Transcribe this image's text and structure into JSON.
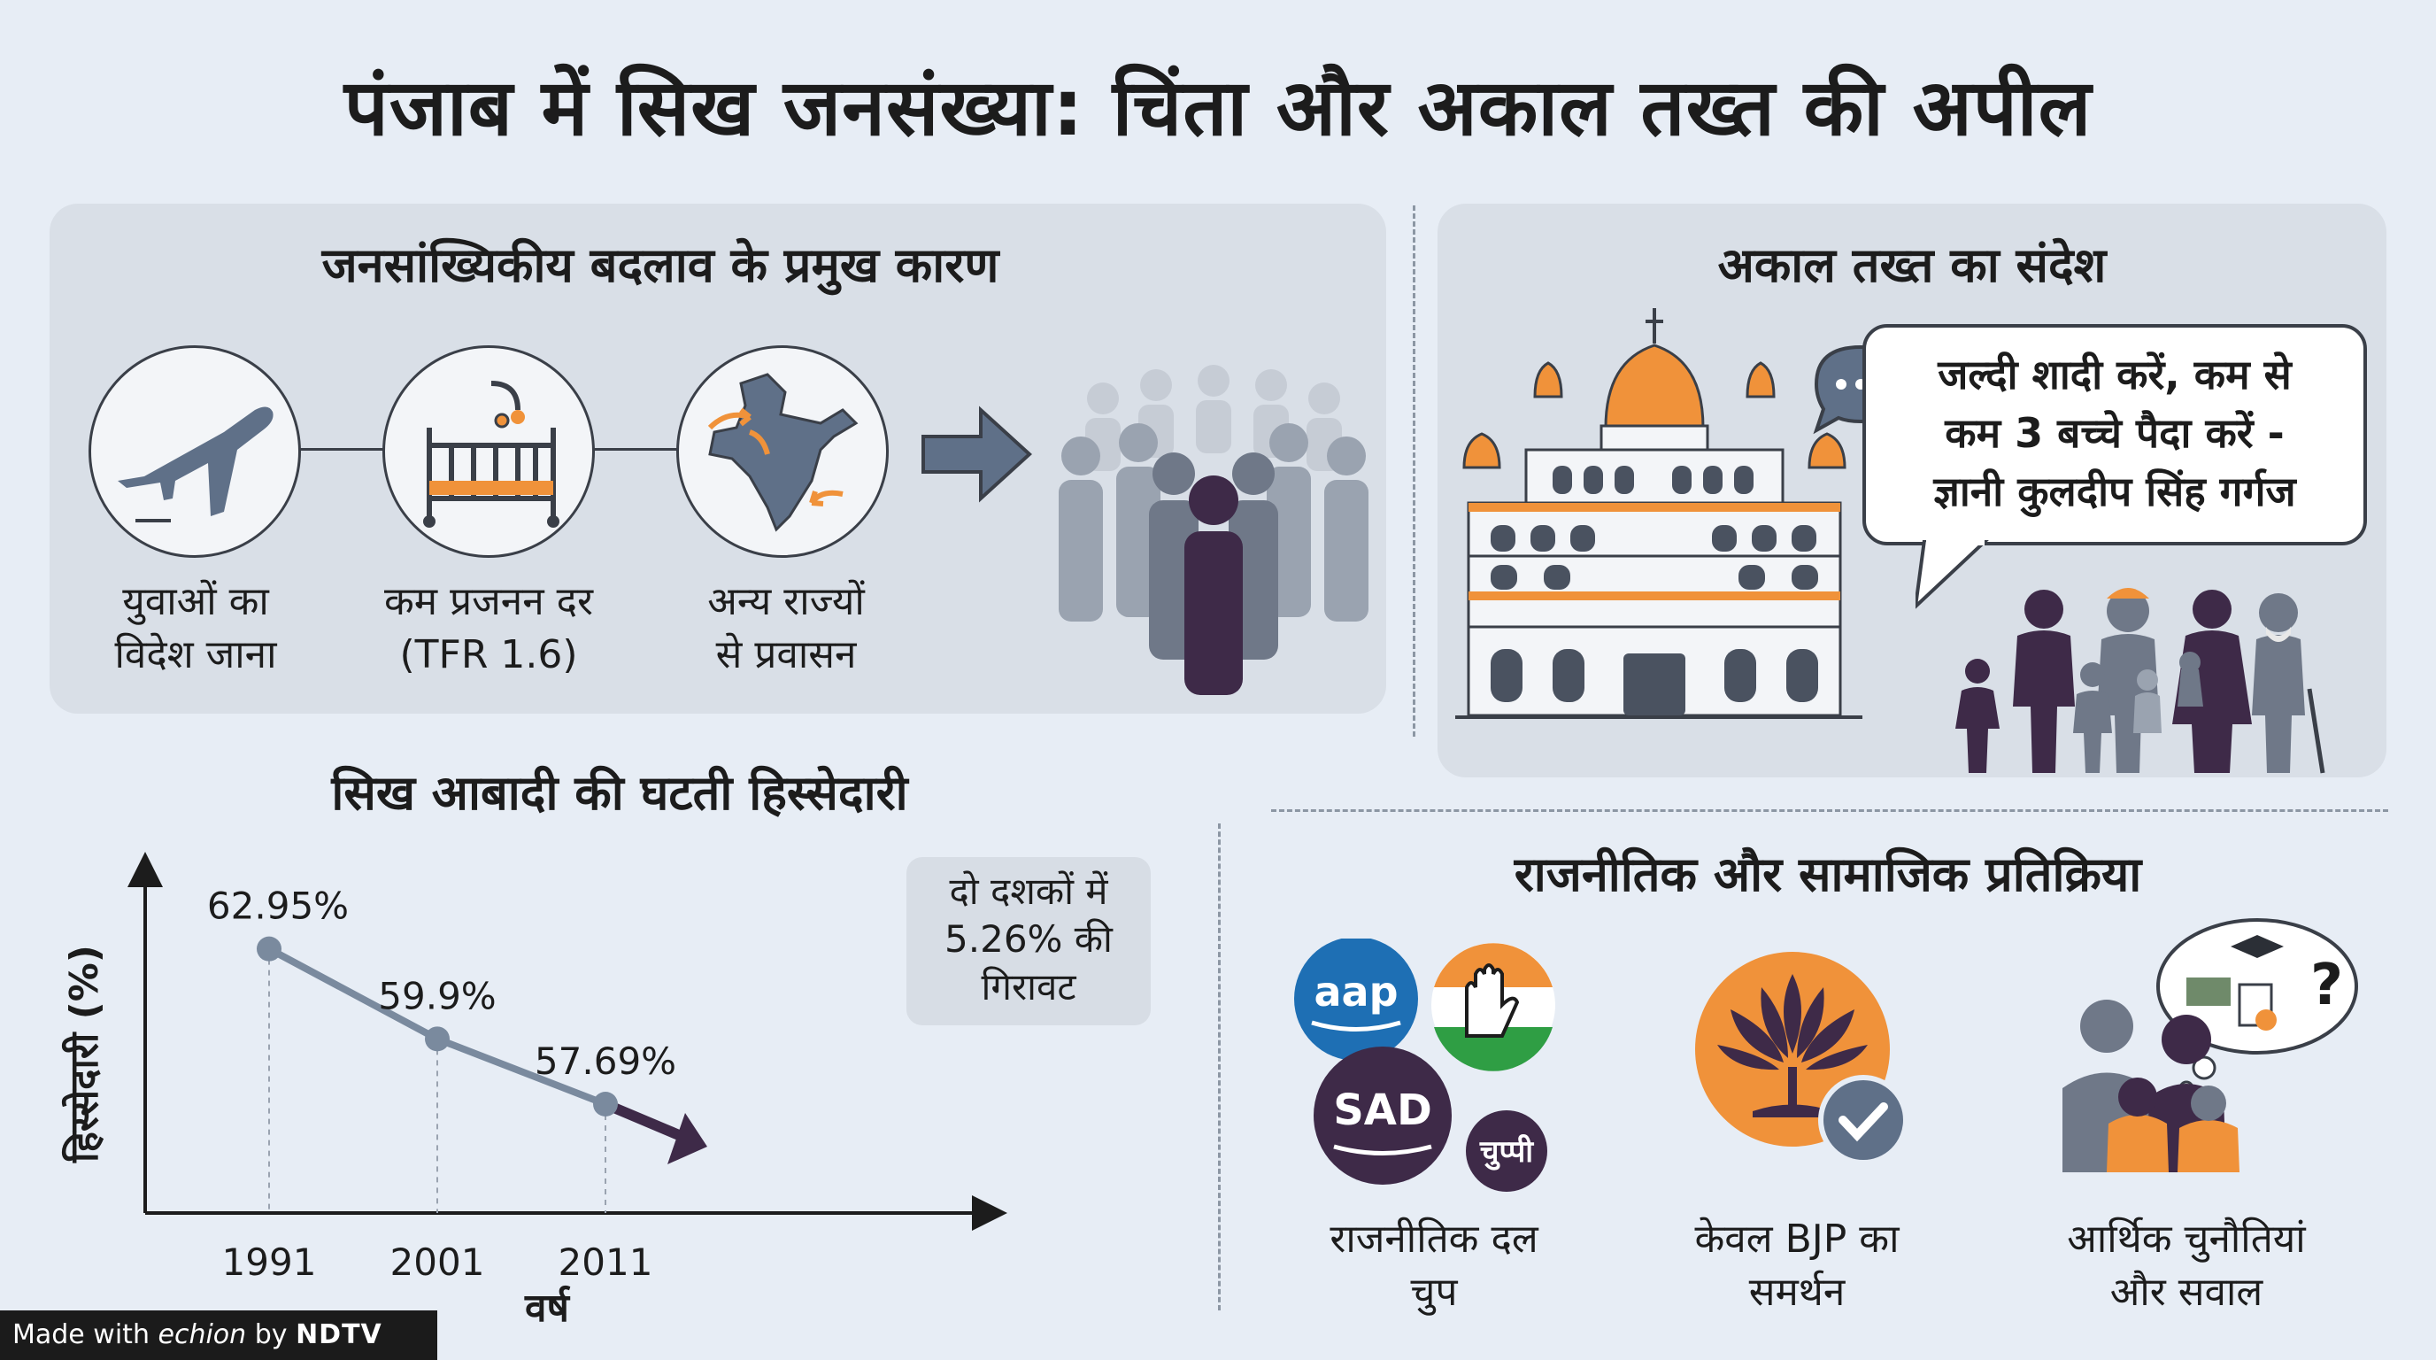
{
  "title": "पंजाब में सिख जनसंख्या: चिंता और अकाल तख्त की अपील",
  "causes": {
    "title": "जनसांख्यिकीय बदलाव के प्रमुख कारण",
    "items": [
      {
        "line1": "युवाओं का",
        "line2": "विदेश जाना",
        "icon": "airplane-icon"
      },
      {
        "line1": "कम प्रजनन दर",
        "line2": "(TFR 1.6)",
        "icon": "crib-icon"
      },
      {
        "line1": "अन्य राज्यों",
        "line2": "से प्रवासन",
        "icon": "india-map-icon"
      }
    ]
  },
  "akal_takht": {
    "title": "अकाल तख्त का संदेश",
    "quote_line1": "जल्दी शादी करें, कम से",
    "quote_line2": "कम 3 बच्चे पैदा करें -",
    "quote_line3": "ज्ञानी कुलदीप सिंह गर्गज"
  },
  "chart_section": {
    "title": "सिख आबादी की घटती हिस्सेदारी",
    "callout_line1": "दो दशकों में",
    "callout_line2": "5.26% की",
    "callout_line3": "गिरावट"
  },
  "chart_data": {
    "type": "line",
    "title": "सिख आबादी की घटती हिस्सेदारी",
    "xlabel": "वर्ष",
    "ylabel": "हिस्सेदारी (%)",
    "categories": [
      "1991",
      "2001",
      "2011"
    ],
    "values": [
      62.95,
      59.9,
      57.69
    ],
    "data_labels": [
      "62.95%",
      "59.9%",
      "57.69%"
    ],
    "ylim": [
      54,
      66
    ],
    "grid": false,
    "colors": {
      "line": "#7a8a9e",
      "arrow": "#3e2a48"
    }
  },
  "reactions": {
    "title": "राजनीतिक और सामाजिक प्रतिक्रिया",
    "items": [
      {
        "line1": "राजनीतिक दल",
        "line2": "चुप"
      },
      {
        "line1": "केवल BJP का",
        "line2": "समर्थन"
      },
      {
        "line1": "आर्थिक चुनौतियां",
        "line2": "और सवाल"
      }
    ],
    "logos": {
      "aap": "aap",
      "sad": "SAD",
      "silent": "चुप्पी"
    }
  },
  "footer": {
    "made_with": "Made with",
    "brand": "echion",
    "by": "by",
    "partner": "NDTV"
  },
  "colors": {
    "background": "#e7edf5",
    "panel": "#d9dfe7",
    "accent_orange": "#f0923a",
    "slate": "#5f7088",
    "plum": "#3e2a48"
  }
}
